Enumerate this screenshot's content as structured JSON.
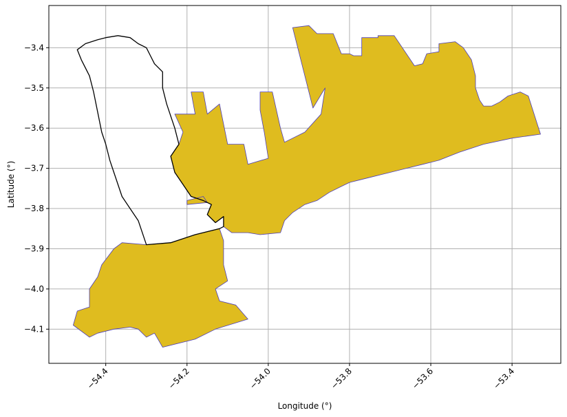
{
  "chart_data": {
    "type": "map",
    "xlabel": "Longitude (°)",
    "ylabel": "Latitude (°)",
    "xlim": [
      -54.54,
      -53.28
    ],
    "ylim": [
      -4.185,
      -3.295
    ],
    "x_ticks": [
      {
        "value": -54.4,
        "label": "−54.4"
      },
      {
        "value": -54.2,
        "label": "−54.2"
      },
      {
        "value": -54.0,
        "label": "−54.0"
      },
      {
        "value": -53.8,
        "label": "−53.8"
      },
      {
        "value": -53.6,
        "label": "−53.6"
      },
      {
        "value": -53.4,
        "label": "−53.4"
      }
    ],
    "y_ticks": [
      {
        "value": -3.4,
        "label": "−3.4"
      },
      {
        "value": -3.5,
        "label": "−3.5"
      },
      {
        "value": -3.6,
        "label": "−3.6"
      },
      {
        "value": -3.7,
        "label": "−3.7"
      },
      {
        "value": -3.8,
        "label": "−3.8"
      },
      {
        "value": -3.9,
        "label": "−3.9"
      },
      {
        "value": -4.0,
        "label": "−4.0"
      },
      {
        "value": -4.1,
        "label": "−4.1"
      }
    ],
    "grid": true,
    "colors": {
      "fill": "#dfbc1f",
      "fill_edge": "#4b3dbb",
      "outline": "#000000",
      "grid": "#b0b0b0"
    },
    "regions": [
      {
        "kind": "filled",
        "coords": [
          [
            -53.94,
            -3.35
          ],
          [
            -53.9,
            -3.345
          ],
          [
            -53.88,
            -3.365
          ],
          [
            -53.84,
            -3.365
          ],
          [
            -53.82,
            -3.415
          ],
          [
            -53.8,
            -3.415
          ],
          [
            -53.79,
            -3.42
          ],
          [
            -53.77,
            -3.42
          ],
          [
            -53.77,
            -3.375
          ],
          [
            -53.73,
            -3.375
          ],
          [
            -53.73,
            -3.37
          ],
          [
            -53.69,
            -3.37
          ],
          [
            -53.64,
            -3.445
          ],
          [
            -53.62,
            -3.44
          ],
          [
            -53.61,
            -3.415
          ],
          [
            -53.58,
            -3.41
          ],
          [
            -53.58,
            -3.39
          ],
          [
            -53.54,
            -3.385
          ],
          [
            -53.52,
            -3.4
          ],
          [
            -53.5,
            -3.43
          ],
          [
            -53.49,
            -3.47
          ],
          [
            -53.49,
            -3.5
          ],
          [
            -53.48,
            -3.53
          ],
          [
            -53.47,
            -3.545
          ],
          [
            -53.45,
            -3.545
          ],
          [
            -53.43,
            -3.535
          ],
          [
            -53.41,
            -3.52
          ],
          [
            -53.38,
            -3.51
          ],
          [
            -53.36,
            -3.52
          ],
          [
            -53.33,
            -3.615
          ],
          [
            -53.4,
            -3.625
          ],
          [
            -53.47,
            -3.64
          ],
          [
            -53.53,
            -3.66
          ],
          [
            -53.58,
            -3.68
          ],
          [
            -53.62,
            -3.69
          ],
          [
            -53.66,
            -3.7
          ],
          [
            -53.7,
            -3.71
          ],
          [
            -53.74,
            -3.72
          ],
          [
            -53.78,
            -3.73
          ],
          [
            -53.8,
            -3.735
          ],
          [
            -53.82,
            -3.745
          ],
          [
            -53.85,
            -3.76
          ],
          [
            -53.88,
            -3.78
          ],
          [
            -53.91,
            -3.79
          ],
          [
            -53.94,
            -3.81
          ],
          [
            -53.96,
            -3.83
          ],
          [
            -53.97,
            -3.86
          ],
          [
            -54.02,
            -3.865
          ],
          [
            -54.05,
            -3.86
          ],
          [
            -54.09,
            -3.86
          ],
          [
            -54.11,
            -3.845
          ],
          [
            -54.11,
            -3.82
          ],
          [
            -54.13,
            -3.835
          ],
          [
            -54.15,
            -3.815
          ],
          [
            -54.14,
            -3.79
          ],
          [
            -54.16,
            -3.78
          ],
          [
            -54.19,
            -3.77
          ],
          [
            -54.21,
            -3.74
          ],
          [
            -54.23,
            -3.71
          ],
          [
            -54.24,
            -3.67
          ],
          [
            -54.22,
            -3.64
          ],
          [
            -54.21,
            -3.61
          ],
          [
            -54.23,
            -3.565
          ],
          [
            -54.18,
            -3.565
          ],
          [
            -54.19,
            -3.51
          ],
          [
            -54.16,
            -3.51
          ],
          [
            -54.15,
            -3.565
          ],
          [
            -54.12,
            -3.54
          ],
          [
            -54.1,
            -3.64
          ],
          [
            -54.06,
            -3.64
          ],
          [
            -54.05,
            -3.69
          ],
          [
            -54.0,
            -3.675
          ],
          [
            -54.01,
            -3.61
          ],
          [
            -54.02,
            -3.555
          ],
          [
            -54.02,
            -3.51
          ],
          [
            -53.99,
            -3.51
          ],
          [
            -53.97,
            -3.6
          ],
          [
            -53.96,
            -3.635
          ],
          [
            -53.91,
            -3.61
          ],
          [
            -53.87,
            -3.565
          ],
          [
            -53.86,
            -3.5
          ],
          [
            -53.89,
            -3.55
          ],
          [
            -53.94,
            -3.35
          ]
        ]
      },
      {
        "kind": "filled",
        "coords": [
          [
            -54.2,
            -3.78
          ],
          [
            -54.16,
            -3.77
          ],
          [
            -54.15,
            -3.785
          ],
          [
            -54.2,
            -3.79
          ],
          [
            -54.2,
            -3.78
          ]
        ]
      },
      {
        "kind": "filled",
        "coords": [
          [
            -54.36,
            -3.885
          ],
          [
            -54.3,
            -3.89
          ],
          [
            -54.24,
            -3.885
          ],
          [
            -54.18,
            -3.865
          ],
          [
            -54.12,
            -3.85
          ],
          [
            -54.11,
            -3.88
          ],
          [
            -54.11,
            -3.94
          ],
          [
            -54.1,
            -3.98
          ],
          [
            -54.13,
            -4.0
          ],
          [
            -54.12,
            -4.03
          ],
          [
            -54.08,
            -4.04
          ],
          [
            -54.05,
            -4.075
          ],
          [
            -54.13,
            -4.1
          ],
          [
            -54.18,
            -4.125
          ],
          [
            -54.26,
            -4.145
          ],
          [
            -54.28,
            -4.11
          ],
          [
            -54.3,
            -4.12
          ],
          [
            -54.32,
            -4.1
          ],
          [
            -54.34,
            -4.095
          ],
          [
            -54.38,
            -4.1
          ],
          [
            -54.42,
            -4.11
          ],
          [
            -54.44,
            -4.12
          ],
          [
            -54.48,
            -4.09
          ],
          [
            -54.47,
            -4.055
          ],
          [
            -54.44,
            -4.045
          ],
          [
            -54.44,
            -4.0
          ],
          [
            -54.42,
            -3.97
          ],
          [
            -54.41,
            -3.94
          ],
          [
            -54.38,
            -3.9
          ],
          [
            -54.36,
            -3.885
          ]
        ]
      },
      {
        "kind": "outline",
        "coords": [
          [
            -54.47,
            -3.405
          ],
          [
            -54.45,
            -3.39
          ],
          [
            -54.42,
            -3.38
          ],
          [
            -54.4,
            -3.375
          ],
          [
            -54.37,
            -3.37
          ],
          [
            -54.34,
            -3.375
          ],
          [
            -54.32,
            -3.39
          ],
          [
            -54.3,
            -3.4
          ],
          [
            -54.29,
            -3.42
          ],
          [
            -54.28,
            -3.44
          ],
          [
            -54.26,
            -3.46
          ],
          [
            -54.26,
            -3.5
          ],
          [
            -54.25,
            -3.54
          ],
          [
            -54.24,
            -3.57
          ],
          [
            -54.23,
            -3.6
          ],
          [
            -54.22,
            -3.64
          ],
          [
            -54.24,
            -3.67
          ],
          [
            -54.23,
            -3.71
          ],
          [
            -54.21,
            -3.74
          ],
          [
            -54.19,
            -3.77
          ],
          [
            -54.16,
            -3.78
          ],
          [
            -54.14,
            -3.79
          ],
          [
            -54.15,
            -3.815
          ],
          [
            -54.13,
            -3.835
          ],
          [
            -54.11,
            -3.82
          ],
          [
            -54.11,
            -3.845
          ],
          [
            -54.12,
            -3.85
          ],
          [
            -54.18,
            -3.865
          ],
          [
            -54.24,
            -3.885
          ],
          [
            -54.3,
            -3.89
          ],
          [
            -54.31,
            -3.86
          ],
          [
            -54.32,
            -3.83
          ],
          [
            -54.34,
            -3.8
          ],
          [
            -54.36,
            -3.77
          ],
          [
            -54.37,
            -3.74
          ],
          [
            -54.38,
            -3.71
          ],
          [
            -54.39,
            -3.68
          ],
          [
            -54.4,
            -3.64
          ],
          [
            -54.41,
            -3.61
          ],
          [
            -54.42,
            -3.56
          ],
          [
            -54.43,
            -3.51
          ],
          [
            -54.44,
            -3.47
          ],
          [
            -54.46,
            -3.43
          ],
          [
            -54.47,
            -3.405
          ]
        ]
      }
    ]
  }
}
